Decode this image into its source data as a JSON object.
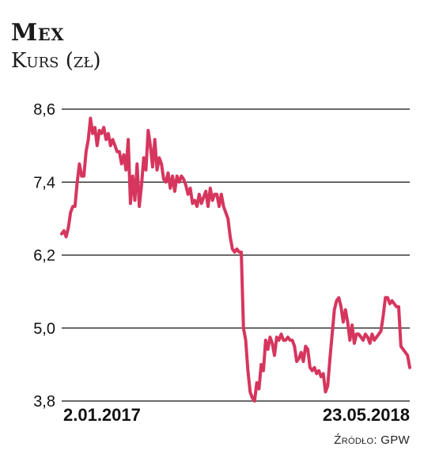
{
  "header": {
    "title": "Mex",
    "subtitle": "Kurs (zł)"
  },
  "footer": {
    "source": "Źródło: GPW"
  },
  "colors": {
    "line": "#d6365e",
    "grid": "#111111",
    "text": "#111111"
  },
  "chart_data": {
    "type": "line",
    "title": "Mex",
    "ylabel": "Kurs (zł)",
    "xlabel": "",
    "ylim": [
      3.8,
      8.6
    ],
    "yticks": [
      8.6,
      7.4,
      6.2,
      5.0,
      3.8
    ],
    "ytick_labels": [
      "8,6",
      "7,4",
      "6,2",
      "5,0",
      "3,8"
    ],
    "x_start_label": "2.01.2017",
    "x_end_label": "23.05.2018",
    "grid": true,
    "series": [
      {
        "values": [
          6.55,
          6.6,
          6.5,
          6.65,
          6.9,
          7.0,
          7.0,
          7.4,
          7.7,
          7.5,
          7.5,
          7.9,
          8.1,
          8.45,
          8.2,
          8.3,
          8.0,
          8.25,
          8.2,
          8.3,
          8.1,
          8.2,
          8.0,
          8.1,
          8.0,
          7.9,
          7.9,
          7.7,
          7.85,
          7.6,
          8.1,
          7.05,
          7.5,
          7.1,
          7.7,
          7.0,
          7.35,
          7.8,
          7.6,
          8.25,
          8.0,
          7.65,
          8.1,
          7.6,
          7.8,
          7.7,
          7.45,
          7.4,
          7.55,
          7.3,
          7.5,
          7.25,
          7.5,
          7.4,
          7.5,
          7.45,
          7.35,
          7.2,
          7.3,
          7.05,
          7.1,
          7.0,
          7.2,
          7.05,
          7.15,
          7.25,
          7.0,
          7.3,
          7.1,
          7.2,
          7.2,
          7.0,
          7.2,
          7.0,
          6.9,
          6.8,
          6.5,
          6.3,
          6.25,
          6.3,
          6.25,
          6.25,
          5.0,
          4.8,
          4.3,
          3.95,
          3.85,
          3.8,
          4.1,
          4.0,
          4.4,
          4.3,
          4.8,
          4.65,
          4.85,
          4.75,
          4.55,
          4.85,
          4.8,
          4.9,
          4.8,
          4.8,
          4.85,
          4.8,
          4.8,
          4.7,
          4.45,
          4.5,
          4.6,
          4.45,
          4.7,
          4.65,
          4.35,
          4.3,
          4.35,
          4.25,
          4.3,
          4.2,
          4.25,
          3.95,
          4.05,
          4.5,
          4.9,
          5.3,
          5.45,
          5.5,
          5.35,
          5.1,
          5.3,
          5.1,
          4.8,
          5.05,
          4.75,
          4.9,
          4.9,
          4.85,
          4.8,
          4.9,
          4.85,
          4.75,
          4.9,
          4.8,
          4.85,
          4.9,
          4.95,
          5.2,
          5.5,
          5.5,
          5.4,
          5.45,
          5.4,
          5.35,
          5.35,
          4.7,
          4.65,
          4.6,
          4.55,
          4.35
        ]
      }
    ]
  }
}
